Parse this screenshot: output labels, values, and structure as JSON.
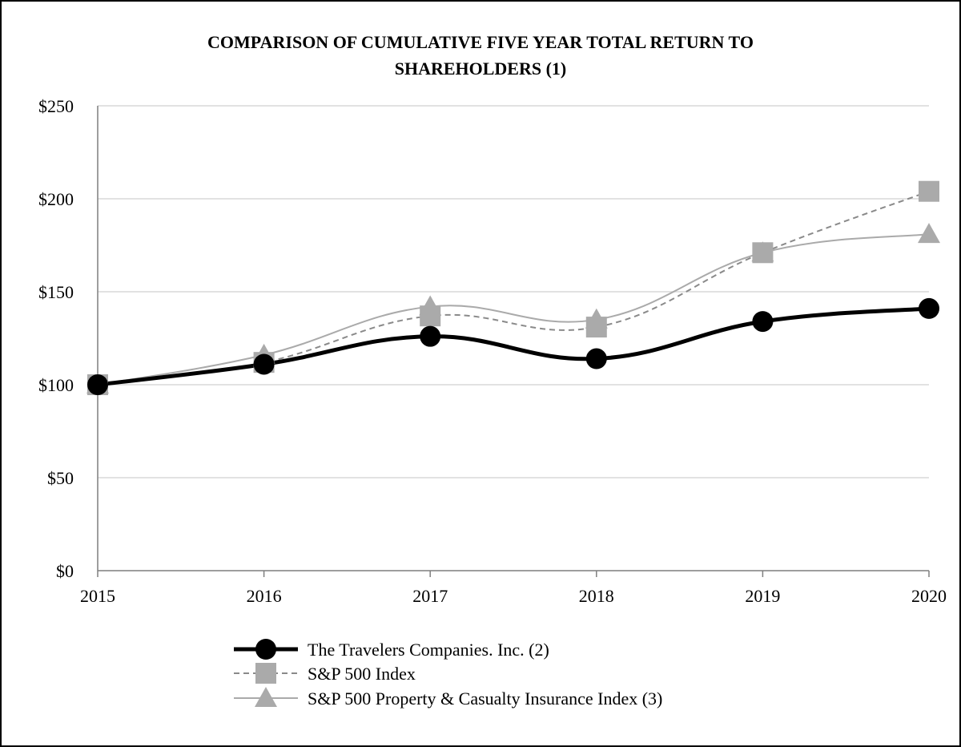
{
  "chart_data": {
    "type": "line",
    "title_lines": [
      "COMPARISON OF CUMULATIVE FIVE YEAR TOTAL RETURN TO",
      "SHAREHOLDERS (1)"
    ],
    "categories": [
      "2015",
      "2016",
      "2017",
      "2018",
      "2019",
      "2020"
    ],
    "y_ticks": [
      0,
      50,
      100,
      150,
      200,
      250
    ],
    "y_tick_labels": [
      "$0",
      "$50",
      "$100",
      "$150",
      "$200",
      "$250"
    ],
    "ylim": [
      0,
      250
    ],
    "grid": true,
    "legend_position": "bottom",
    "series": [
      {
        "name": "The Travelers Companies. Inc. (2)",
        "marker": "circle",
        "line_style": "solid-thick",
        "color": "#000000",
        "values": [
          100,
          111,
          126,
          114,
          134,
          141
        ]
      },
      {
        "name": "S&P 500 Index",
        "marker": "square",
        "line_style": "dashed",
        "color": "#8a8a8a",
        "marker_color": "#aaaaaa",
        "values": [
          100,
          112,
          137,
          131,
          171,
          204
        ]
      },
      {
        "name": "S&P 500 Property & Casualty Insurance Index (3)",
        "marker": "triangle",
        "line_style": "solid-thin",
        "color": "#aaaaaa",
        "marker_color": "#aaaaaa",
        "values": [
          100,
          116,
          142,
          135,
          171,
          181
        ]
      }
    ]
  }
}
